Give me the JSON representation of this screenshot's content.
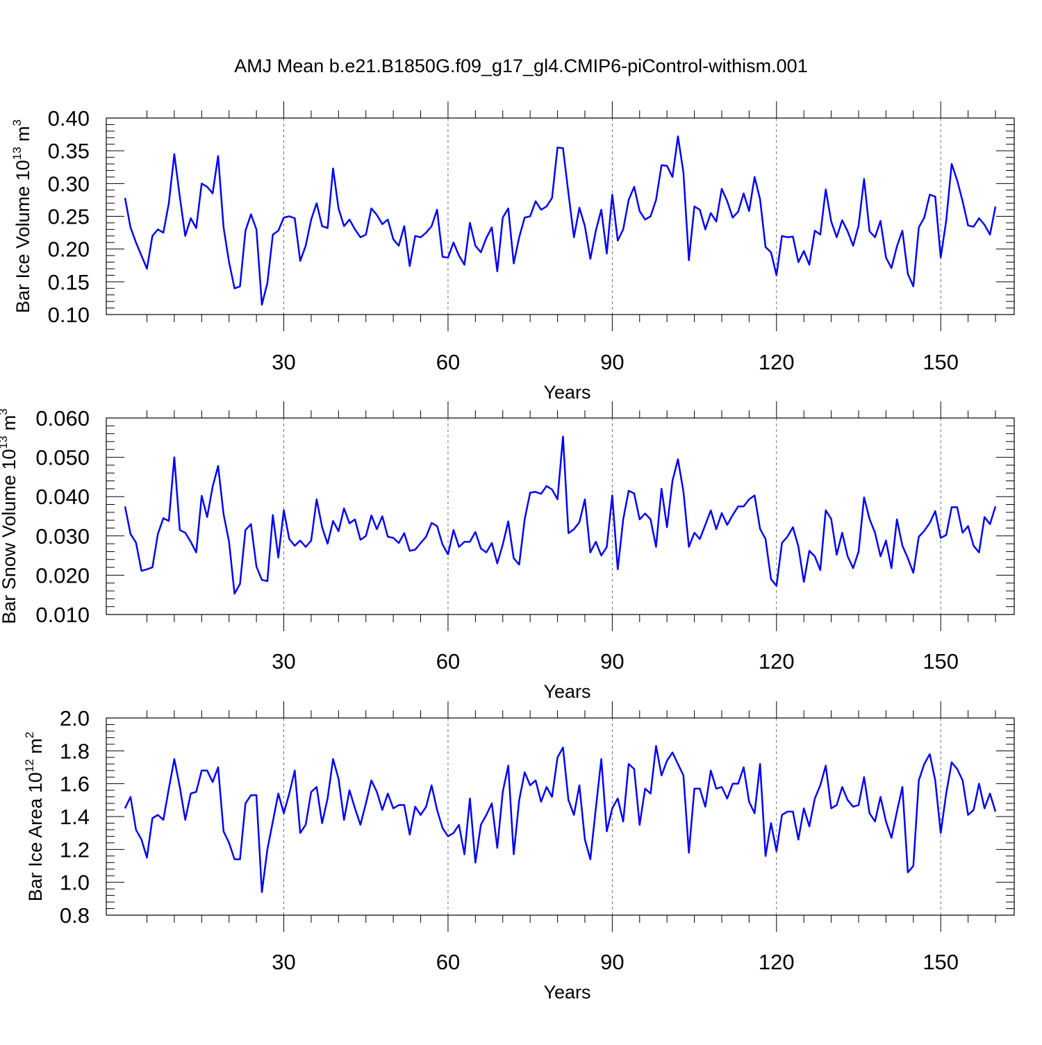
{
  "title": "AMJ Mean b.e21.B1850G.f09_g17_gl4.CMIP6-piControl-withism.001",
  "colors": {
    "series": "#0000ff",
    "axes": "#000000",
    "gridline": "#000000"
  },
  "chart_data": [
    {
      "type": "line",
      "xlabel": "Years",
      "ylabel": {
        "text": "Bar Ice Volume 10",
        "exp": "13",
        "unit": " m",
        "unit_exp": "3"
      },
      "xlim": [
        1,
        160
      ],
      "ylim": [
        0.1,
        0.4
      ],
      "xticks": [
        30,
        60,
        90,
        120,
        150
      ],
      "xtick_labels": [
        "30",
        "60",
        "90",
        "120",
        "150"
      ],
      "yticks": [
        0.1,
        0.15,
        0.2,
        0.25,
        0.3,
        0.35,
        0.4
      ],
      "ytick_labels": [
        "0.10",
        "0.15",
        "0.20",
        "0.25",
        "0.30",
        "0.35",
        "0.40"
      ],
      "ytick_minor_step": 0.01,
      "xtick_minor_step": 5,
      "grid": "vertical dashed at major x ticks",
      "series": [
        {
          "values": [
            0.278,
            0.233,
            0.21,
            0.19,
            0.17,
            0.22,
            0.23,
            0.225,
            0.27,
            0.345,
            0.28,
            0.22,
            0.247,
            0.232,
            0.3,
            0.295,
            0.285,
            0.342,
            0.233,
            0.18,
            0.14,
            0.143,
            0.228,
            0.253,
            0.23,
            0.115,
            0.148,
            0.222,
            0.228,
            0.248,
            0.25,
            0.247,
            0.182,
            0.205,
            0.245,
            0.27,
            0.235,
            0.232,
            0.323,
            0.262,
            0.235,
            0.245,
            0.23,
            0.218,
            0.222,
            0.262,
            0.252,
            0.238,
            0.245,
            0.215,
            0.205,
            0.235,
            0.174,
            0.22,
            0.218,
            0.225,
            0.235,
            0.26,
            0.188,
            0.187,
            0.21,
            0.19,
            0.176,
            0.24,
            0.205,
            0.195,
            0.217,
            0.233,
            0.166,
            0.248,
            0.262,
            0.178,
            0.218,
            0.248,
            0.25,
            0.273,
            0.26,
            0.265,
            0.278,
            0.355,
            0.354,
            0.285,
            0.218,
            0.263,
            0.235,
            0.185,
            0.228,
            0.26,
            0.193,
            0.283,
            0.213,
            0.23,
            0.275,
            0.295,
            0.258,
            0.245,
            0.25,
            0.275,
            0.328,
            0.327,
            0.31,
            0.372,
            0.317,
            0.183,
            0.265,
            0.26,
            0.23,
            0.255,
            0.242,
            0.292,
            0.273,
            0.248,
            0.257,
            0.285,
            0.258,
            0.31,
            0.276,
            0.203,
            0.195,
            0.16,
            0.22,
            0.218,
            0.219,
            0.18,
            0.197,
            0.176,
            0.228,
            0.222,
            0.291,
            0.242,
            0.218,
            0.244,
            0.227,
            0.205,
            0.236,
            0.307,
            0.227,
            0.218,
            0.243,
            0.187,
            0.171,
            0.204,
            0.228,
            0.162,
            0.143,
            0.233,
            0.248,
            0.283,
            0.28,
            0.187,
            0.243,
            0.33,
            0.305,
            0.273,
            0.236,
            0.234,
            0.247,
            0.237,
            0.222,
            0.265
          ]
        }
      ]
    },
    {
      "type": "line",
      "xlabel": "Years",
      "ylabel": {
        "text": "Bar Snow Volume 10",
        "exp": "13",
        "unit": " m",
        "unit_exp": "3"
      },
      "xlim": [
        1,
        160
      ],
      "ylim": [
        0.01,
        0.06
      ],
      "xticks": [
        30,
        60,
        90,
        120,
        150
      ],
      "xtick_labels": [
        "30",
        "60",
        "90",
        "120",
        "150"
      ],
      "yticks": [
        0.01,
        0.02,
        0.03,
        0.04,
        0.05,
        0.06
      ],
      "ytick_labels": [
        "0.010",
        "0.020",
        "0.030",
        "0.040",
        "0.050",
        "0.060"
      ],
      "ytick_minor_step": 0.002,
      "xtick_minor_step": 5,
      "grid": "vertical dashed at major x ticks",
      "series": [
        {
          "values": [
            0.0375,
            0.0305,
            0.0283,
            0.0211,
            0.0215,
            0.022,
            0.0305,
            0.0345,
            0.0338,
            0.05,
            0.0315,
            0.0308,
            0.0285,
            0.0258,
            0.0402,
            0.0348,
            0.0425,
            0.0478,
            0.0355,
            0.0285,
            0.0153,
            0.0178,
            0.0315,
            0.033,
            0.0222,
            0.0188,
            0.0185,
            0.0353,
            0.0245,
            0.0365,
            0.0292,
            0.0275,
            0.0288,
            0.0272,
            0.0288,
            0.0393,
            0.0322,
            0.028,
            0.0338,
            0.0312,
            0.037,
            0.0332,
            0.0342,
            0.029,
            0.03,
            0.0352,
            0.0317,
            0.035,
            0.0298,
            0.0295,
            0.0282,
            0.0307,
            0.0262,
            0.0265,
            0.0282,
            0.0298,
            0.0333,
            0.0325,
            0.0278,
            0.0253,
            0.0315,
            0.0272,
            0.0285,
            0.0285,
            0.031,
            0.0268,
            0.0258,
            0.0282,
            0.023,
            0.0278,
            0.0337,
            0.0243,
            0.0227,
            0.0342,
            0.041,
            0.0412,
            0.0407,
            0.0427,
            0.0418,
            0.0393,
            0.0553,
            0.0307,
            0.0317,
            0.0335,
            0.0393,
            0.0258,
            0.0285,
            0.025,
            0.0272,
            0.0403,
            0.0215,
            0.0342,
            0.0415,
            0.0408,
            0.0342,
            0.0357,
            0.0342,
            0.0272,
            0.042,
            0.0322,
            0.044,
            0.0495,
            0.0413,
            0.0272,
            0.0308,
            0.0292,
            0.0328,
            0.0365,
            0.0317,
            0.0358,
            0.0328,
            0.0353,
            0.0375,
            0.0375,
            0.0393,
            0.0403,
            0.0318,
            0.0292,
            0.019,
            0.0173,
            0.0282,
            0.0298,
            0.0322,
            0.0273,
            0.0183,
            0.0262,
            0.0248,
            0.0213,
            0.0365,
            0.0343,
            0.0252,
            0.0308,
            0.0248,
            0.0218,
            0.026,
            0.0398,
            0.0343,
            0.0308,
            0.0248,
            0.0288,
            0.0218,
            0.0342,
            0.0275,
            0.0243,
            0.0206,
            0.0298,
            0.0313,
            0.0333,
            0.0363,
            0.0295,
            0.0302,
            0.0373,
            0.0373,
            0.0308,
            0.0325,
            0.0275,
            0.0258,
            0.0348,
            0.033,
            0.0375
          ]
        }
      ]
    },
    {
      "type": "line",
      "xlabel": "Years",
      "ylabel": {
        "text": "Bar Ice Area 10",
        "exp": "12",
        "unit": " m",
        "unit_exp": "2"
      },
      "xlim": [
        1,
        160
      ],
      "ylim": [
        0.8,
        2.0
      ],
      "xticks": [
        30,
        60,
        90,
        120,
        150
      ],
      "xtick_labels": [
        "30",
        "60",
        "90",
        "120",
        "150"
      ],
      "yticks": [
        0.8,
        1.0,
        1.2,
        1.4,
        1.6,
        1.8,
        2.0
      ],
      "ytick_labels": [
        "0.8",
        "1.0",
        "1.2",
        "1.4",
        "1.6",
        "1.8",
        "2.0"
      ],
      "ytick_minor_step": 0.04,
      "xtick_minor_step": 5,
      "grid": "vertical dashed at major x ticks",
      "series": [
        {
          "values": [
            1.45,
            1.52,
            1.32,
            1.26,
            1.15,
            1.39,
            1.41,
            1.38,
            1.57,
            1.75,
            1.58,
            1.38,
            1.54,
            1.55,
            1.68,
            1.68,
            1.61,
            1.7,
            1.31,
            1.24,
            1.14,
            1.14,
            1.48,
            1.53,
            1.53,
            0.94,
            1.2,
            1.37,
            1.54,
            1.42,
            1.54,
            1.68,
            1.3,
            1.35,
            1.55,
            1.58,
            1.36,
            1.51,
            1.75,
            1.63,
            1.38,
            1.56,
            1.45,
            1.35,
            1.48,
            1.62,
            1.55,
            1.44,
            1.54,
            1.45,
            1.47,
            1.47,
            1.29,
            1.46,
            1.41,
            1.46,
            1.59,
            1.44,
            1.33,
            1.28,
            1.3,
            1.35,
            1.17,
            1.51,
            1.12,
            1.35,
            1.41,
            1.48,
            1.21,
            1.55,
            1.71,
            1.17,
            1.5,
            1.67,
            1.59,
            1.62,
            1.49,
            1.58,
            1.52,
            1.76,
            1.82,
            1.5,
            1.41,
            1.59,
            1.26,
            1.14,
            1.45,
            1.75,
            1.31,
            1.45,
            1.51,
            1.37,
            1.72,
            1.69,
            1.35,
            1.57,
            1.54,
            1.83,
            1.65,
            1.74,
            1.79,
            1.72,
            1.65,
            1.18,
            1.57,
            1.57,
            1.46,
            1.68,
            1.57,
            1.58,
            1.51,
            1.6,
            1.6,
            1.7,
            1.49,
            1.42,
            1.72,
            1.16,
            1.36,
            1.19,
            1.41,
            1.43,
            1.43,
            1.26,
            1.45,
            1.34,
            1.51,
            1.59,
            1.71,
            1.45,
            1.47,
            1.58,
            1.5,
            1.46,
            1.47,
            1.64,
            1.42,
            1.37,
            1.52,
            1.37,
            1.27,
            1.43,
            1.58,
            1.06,
            1.1,
            1.62,
            1.72,
            1.78,
            1.62,
            1.3,
            1.54,
            1.73,
            1.69,
            1.62,
            1.41,
            1.44,
            1.6,
            1.45,
            1.54,
            1.43
          ]
        }
      ]
    }
  ]
}
